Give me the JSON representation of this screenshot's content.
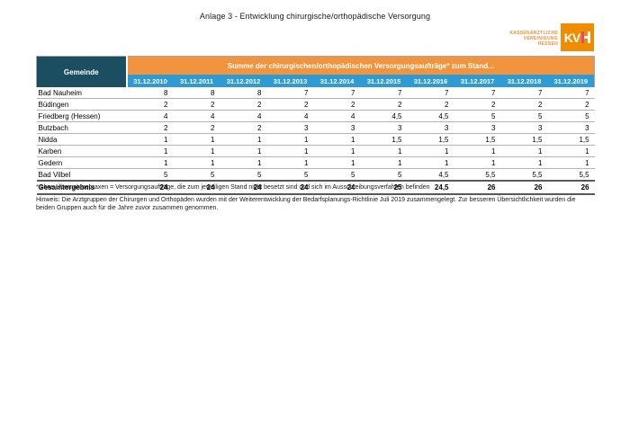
{
  "title": "Anlage 3 - Entwicklung chirurgische/orthopädische Versorgung",
  "logo": {
    "org_lines": [
      "KASSENÄRZTLICHE",
      "VEREINIGUNG",
      "HESSEN"
    ],
    "mark_kv": "KV",
    "mark_h": "H",
    "colors": {
      "square_orange": "#f08c00",
      "text_orange": "#f0913b",
      "h_magenta": "#e8476f"
    }
  },
  "table": {
    "corner_header": "Gemeinde",
    "group_header": "Summe der chirurgischen/orthopädischen Versorgungsaufträge* zum Stand...",
    "columns": [
      "31.12.2010",
      "31.12.2011",
      "31.12.2012",
      "31.12.2013",
      "31.12.2014",
      "31.12.2015",
      "31.12.2016",
      "31.12.2017",
      "31.12.2018",
      "31.12.2019"
    ],
    "rows": [
      {
        "name": "Bad Nauheim",
        "values": [
          "8",
          "8",
          "8",
          "7",
          "7",
          "7",
          "7",
          "7",
          "7",
          "7"
        ]
      },
      {
        "name": "Büdingen",
        "values": [
          "2",
          "2",
          "2",
          "2",
          "2",
          "2",
          "2",
          "2",
          "2",
          "2"
        ]
      },
      {
        "name": "Friedberg (Hessen)",
        "values": [
          "4",
          "4",
          "4",
          "4",
          "4",
          "4,5",
          "4,5",
          "5",
          "5",
          "5"
        ]
      },
      {
        "name": "Butzbach",
        "values": [
          "2",
          "2",
          "2",
          "3",
          "3",
          "3",
          "3",
          "3",
          "3",
          "3"
        ]
      },
      {
        "name": "Nidda",
        "values": [
          "1",
          "1",
          "1",
          "1",
          "1",
          "1,5",
          "1,5",
          "1,5",
          "1,5",
          "1,5"
        ]
      },
      {
        "name": "Karben",
        "values": [
          "1",
          "1",
          "1",
          "1",
          "1",
          "1",
          "1",
          "1",
          "1",
          "1"
        ]
      },
      {
        "name": "Gedern",
        "values": [
          "1",
          "1",
          "1",
          "1",
          "1",
          "1",
          "1",
          "1",
          "1",
          "1"
        ]
      },
      {
        "name": "Bad Vilbel",
        "values": [
          "5",
          "5",
          "5",
          "5",
          "5",
          "5",
          "4,5",
          "5,5",
          "5,5",
          "5,5"
        ]
      }
    ],
    "total": {
      "name": "Gesamtergebnis",
      "values": [
        "24",
        "24",
        "24",
        "24",
        "24",
        "25",
        "24,5",
        "26",
        "26",
        "26"
      ]
    },
    "colors": {
      "corner_teal": "#1c4e62",
      "group_orange": "#f2943d",
      "date_blue": "#2e9bd5",
      "row_line": "#b3b3b3",
      "total_line": "#595959"
    }
  },
  "footnotes": {
    "asterisk": "* ohne Übernahmepraxen = Versorgungsaufträge, die zum jeweiligen Stand nicht besetzt sind und sich im Ausschreibungsverfahren befinden",
    "hinweis": "Hinweis: Die Arztgruppen der Chirurgen und Orthopäden wurden mit der Weiterentwicklung der Bedarfsplanungs-Richtlinie Juli 2019 zusammengelegt. Zur besseren Übersichtlichkeit wurden die beiden Gruppen auch für die Jahre zuvor zusammen genommen."
  }
}
